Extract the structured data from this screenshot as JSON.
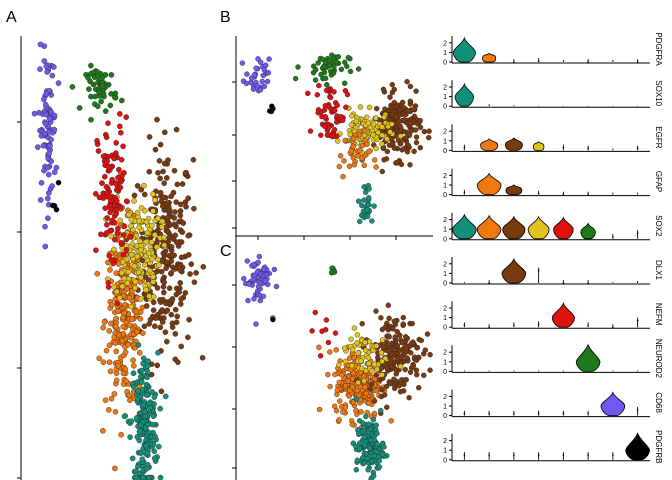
{
  "panel_labels": {
    "a": "A",
    "b": "B",
    "c": "C"
  },
  "colors": {
    "teal": "#14907a",
    "orange": "#f0780f",
    "brown": "#7a3a10",
    "yellow": "#e2c31e",
    "red": "#e01010",
    "green": "#1e7a18",
    "purple": "#7258f0",
    "black": "#000000"
  },
  "chart_data": [
    {
      "type": "scatter",
      "panel": "A",
      "xlabel": "",
      "ylabel": "",
      "clusters": [
        {
          "color": "purple",
          "n": 90,
          "cx": 0.12,
          "cy": 0.8,
          "sx": 0.022,
          "sy": 0.085
        },
        {
          "color": "green",
          "n": 55,
          "cx": 0.4,
          "cy": 0.89,
          "sx": 0.04,
          "sy": 0.025
        },
        {
          "color": "red",
          "n": 110,
          "cx": 0.46,
          "cy": 0.64,
          "sx": 0.04,
          "sy": 0.09
        },
        {
          "color": "yellow",
          "n": 150,
          "cx": 0.58,
          "cy": 0.53,
          "sx": 0.06,
          "sy": 0.06
        },
        {
          "color": "brown",
          "n": 260,
          "cx": 0.73,
          "cy": 0.52,
          "sx": 0.07,
          "sy": 0.12
        },
        {
          "color": "orange",
          "n": 240,
          "cx": 0.52,
          "cy": 0.37,
          "sx": 0.05,
          "sy": 0.1
        },
        {
          "color": "teal",
          "n": 190,
          "cx": 0.62,
          "cy": 0.13,
          "sx": 0.035,
          "sy": 0.08
        },
        {
          "color": "black",
          "n": 4,
          "cx": 0.17,
          "cy": 0.66,
          "sx": 0.01,
          "sy": 0.02
        }
      ]
    },
    {
      "type": "scatter",
      "panel": "B",
      "xlabel": "",
      "ylabel": "",
      "clusters": [
        {
          "color": "purple",
          "n": 30,
          "cx": 0.1,
          "cy": 0.8,
          "sx": 0.03,
          "sy": 0.05
        },
        {
          "color": "green",
          "n": 45,
          "cx": 0.45,
          "cy": 0.86,
          "sx": 0.06,
          "sy": 0.04
        },
        {
          "color": "red",
          "n": 60,
          "cx": 0.48,
          "cy": 0.62,
          "sx": 0.04,
          "sy": 0.08
        },
        {
          "color": "yellow",
          "n": 110,
          "cx": 0.66,
          "cy": 0.52,
          "sx": 0.06,
          "sy": 0.05
        },
        {
          "color": "brown",
          "n": 200,
          "cx": 0.82,
          "cy": 0.55,
          "sx": 0.06,
          "sy": 0.08
        },
        {
          "color": "orange",
          "n": 35,
          "cx": 0.6,
          "cy": 0.4,
          "sx": 0.04,
          "sy": 0.06
        },
        {
          "color": "teal",
          "n": 25,
          "cx": 0.66,
          "cy": 0.14,
          "sx": 0.02,
          "sy": 0.06
        },
        {
          "color": "black",
          "n": 4,
          "cx": 0.17,
          "cy": 0.64,
          "sx": 0.015,
          "sy": 0.02
        }
      ]
    },
    {
      "type": "scatter",
      "panel": "C",
      "xlabel": "",
      "ylabel": "",
      "clusters": [
        {
          "color": "purple",
          "n": 55,
          "cx": 0.1,
          "cy": 0.82,
          "sx": 0.035,
          "sy": 0.06
        },
        {
          "color": "green",
          "n": 6,
          "cx": 0.49,
          "cy": 0.86,
          "sx": 0.01,
          "sy": 0.01
        },
        {
          "color": "red",
          "n": 8,
          "cx": 0.45,
          "cy": 0.62,
          "sx": 0.03,
          "sy": 0.05
        },
        {
          "color": "yellow",
          "n": 55,
          "cx": 0.64,
          "cy": 0.52,
          "sx": 0.06,
          "sy": 0.05
        },
        {
          "color": "brown",
          "n": 180,
          "cx": 0.81,
          "cy": 0.52,
          "sx": 0.07,
          "sy": 0.08
        },
        {
          "color": "orange",
          "n": 210,
          "cx": 0.62,
          "cy": 0.4,
          "sx": 0.06,
          "sy": 0.07
        },
        {
          "color": "teal",
          "n": 140,
          "cx": 0.68,
          "cy": 0.14,
          "sx": 0.035,
          "sy": 0.055
        },
        {
          "color": "black",
          "n": 1,
          "cx": 0.18,
          "cy": 0.66,
          "sx": 0.0,
          "sy": 0.0
        }
      ]
    },
    {
      "type": "violin",
      "panel": "violins",
      "ylim": [
        0,
        2.5
      ],
      "yticks": [
        "0",
        "1",
        "2"
      ],
      "cluster_order": [
        "teal",
        "orange",
        "brown",
        "yellow",
        "red",
        "green",
        "purple",
        "black"
      ],
      "genes": [
        {
          "name": "PDGFRA",
          "max": [
            2.5,
            0.9,
            0.3,
            0.4,
            0.2,
            0.3,
            0.2,
            0.3
          ],
          "bulk": [
            0.55,
            0.2,
            0.05,
            0.05,
            0.02,
            0.02,
            0.02,
            0.02
          ]
        },
        {
          "name": "SOX10",
          "max": [
            2.3,
            0.2,
            0.1,
            0.05,
            0.05,
            0.05,
            0.05,
            0.05
          ],
          "bulk": [
            0.4,
            0.02,
            0.02,
            0.02,
            0.02,
            0.02,
            0.02,
            0.02
          ]
        },
        {
          "name": "EGFR",
          "max": [
            0.6,
            1.2,
            1.3,
            0.9,
            0.6,
            0.5,
            0.2,
            0.5
          ],
          "bulk": [
            0.05,
            0.35,
            0.35,
            0.1,
            0.05,
            0.05,
            0.02,
            0.02
          ]
        },
        {
          "name": "GFAP",
          "max": [
            0.5,
            2.2,
            1.0,
            0.4,
            0.3,
            0.3,
            0.2,
            0.2
          ],
          "bulk": [
            0.05,
            0.65,
            0.3,
            0.05,
            0.02,
            0.02,
            0.02,
            0.02
          ]
        },
        {
          "name": "SOX2",
          "max": [
            2.5,
            2.4,
            2.3,
            2.3,
            2.2,
            1.6,
            0.5,
            0.9
          ],
          "bulk": [
            0.75,
            0.6,
            0.55,
            0.5,
            0.45,
            0.25,
            0.05,
            0.05
          ]
        },
        {
          "name": "DLX1",
          "max": [
            0.1,
            0.3,
            2.5,
            1.6,
            0.3,
            0.3,
            0.1,
            0.2
          ],
          "bulk": [
            0.02,
            0.02,
            0.65,
            0.05,
            0.02,
            0.02,
            0.02,
            0.02
          ]
        },
        {
          "name": "NEFM",
          "max": [
            0.5,
            0.3,
            0.5,
            0.6,
            2.5,
            0.5,
            0.3,
            1.0
          ],
          "bulk": [
            0.02,
            0.02,
            0.02,
            0.05,
            0.55,
            0.05,
            0.02,
            0.05
          ]
        },
        {
          "name": "NEUROD2",
          "max": [
            0.1,
            0.1,
            0.1,
            0.1,
            0.1,
            2.8,
            0.1,
            0.1
          ],
          "bulk": [
            0.02,
            0.02,
            0.02,
            0.02,
            0.02,
            0.75,
            0.02,
            0.02
          ]
        },
        {
          "name": "CD68",
          "max": [
            0.5,
            0.5,
            0.5,
            0.5,
            0.5,
            0.5,
            2.4,
            0.9
          ],
          "bulk": [
            0.02,
            0.02,
            0.02,
            0.02,
            0.02,
            0.02,
            0.7,
            0.05
          ]
        },
        {
          "name": "PDGFRB",
          "max": [
            0.8,
            0.8,
            0.8,
            0.8,
            0.8,
            0.8,
            0.8,
            2.8
          ],
          "bulk": [
            0.02,
            0.02,
            0.02,
            0.02,
            0.02,
            0.02,
            0.02,
            0.8
          ]
        }
      ]
    }
  ]
}
